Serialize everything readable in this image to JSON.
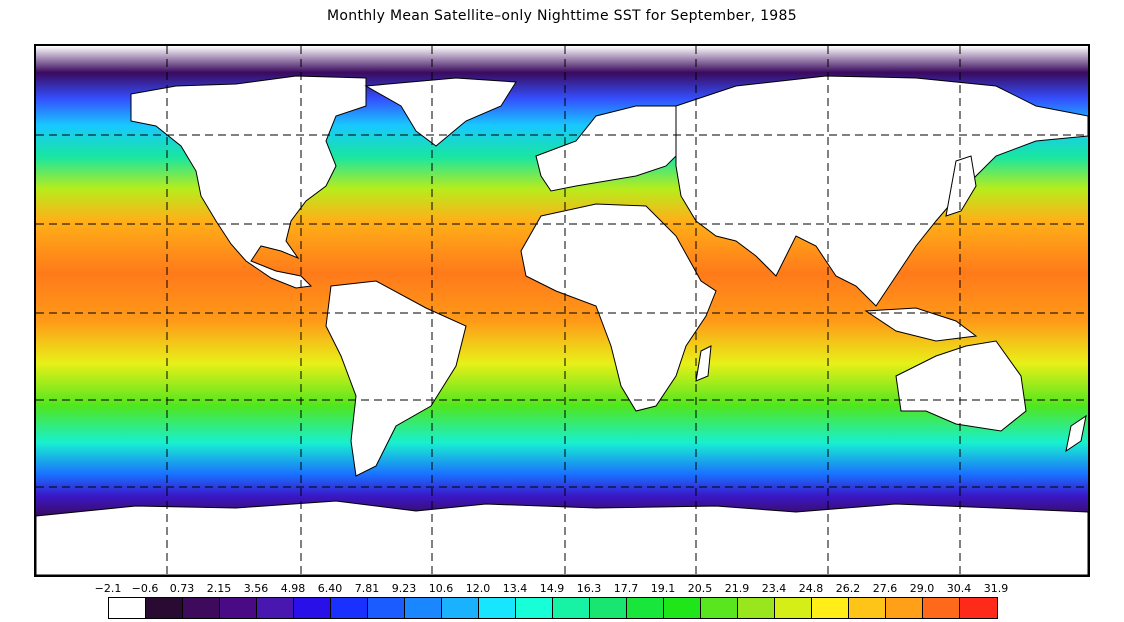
{
  "title": "Monthly Mean Satellite–only Nighttime SST for September, 1985",
  "colorbar": {
    "ticks": [
      "−2.1",
      "−0.6",
      "0.73",
      "2.15",
      "3.56",
      "4.98",
      "6.40",
      "7.81",
      "9.23",
      "10.6",
      "12.0",
      "13.4",
      "14.9",
      "16.3",
      "17.7",
      "19.1",
      "20.5",
      "21.9",
      "23.4",
      "24.8",
      "26.2",
      "27.6",
      "29.0",
      "30.4",
      "31.9"
    ],
    "colors": [
      "#ffffff",
      "#2a0a33",
      "#3d0a5c",
      "#4b0a85",
      "#4a16b0",
      "#2a10e8",
      "#1a30ff",
      "#1a5cff",
      "#1a86ff",
      "#1ab2ff",
      "#18e6ff",
      "#18ffd8",
      "#18f2a4",
      "#18e670",
      "#18e63a",
      "#1ee618",
      "#5ae61e",
      "#9ae61e",
      "#d6ee18",
      "#ffee18",
      "#ffc418",
      "#ffa018",
      "#ff6a1a",
      "#ff2a1a"
    ]
  },
  "map": {
    "land_color": "#ffffff",
    "outline_color": "#000000",
    "grid_style": "dashed"
  }
}
